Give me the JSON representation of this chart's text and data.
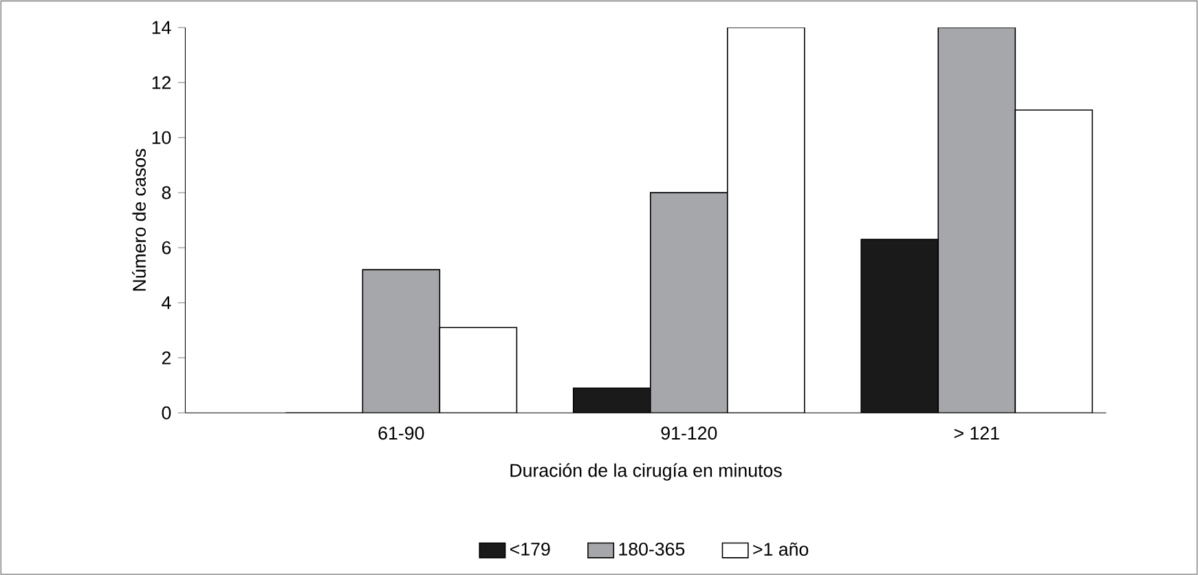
{
  "chart_data": {
    "type": "bar",
    "xlabel": "Duración de la cirugía en minutos",
    "ylabel": "Número de casos",
    "categories": [
      "61-90",
      "91-120",
      "> 121"
    ],
    "series": [
      {
        "name": "<179",
        "color": "#1a1a1a",
        "values": [
          0,
          0.9,
          6.3
        ]
      },
      {
        "name": "180-365",
        "color": "#a6a7aa",
        "values": [
          5.2,
          8,
          14
        ]
      },
      {
        "name": ">1 año",
        "color": "#ffffff",
        "values": [
          3.1,
          14,
          11
        ]
      }
    ],
    "ylim": [
      0,
      14
    ],
    "yticks": [
      0,
      2,
      4,
      6,
      8,
      10,
      12,
      14
    ],
    "grid": false,
    "legend": "bottom"
  }
}
